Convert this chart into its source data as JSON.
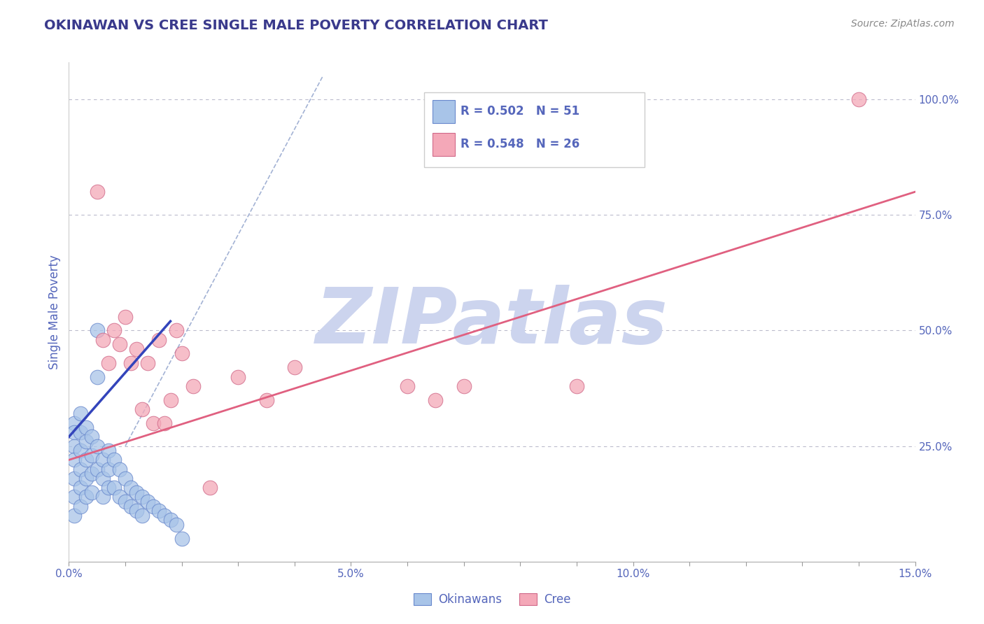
{
  "title": "OKINAWAN VS CREE SINGLE MALE POVERTY CORRELATION CHART",
  "source": "Source: ZipAtlas.com",
  "ylabel": "Single Male Poverty",
  "xlim": [
    0.0,
    0.15
  ],
  "ylim": [
    0.0,
    1.08
  ],
  "title_color": "#3a3a8c",
  "axis_color": "#5566bb",
  "watermark": "ZIPatlas",
  "watermark_color": "#ccd4ee",
  "legend_r1": "R = 0.502",
  "legend_n1": "N = 51",
  "legend_r2": "R = 0.548",
  "legend_n2": "N = 26",
  "okinawan_color": "#a8c4e8",
  "cree_color": "#f4a8b8",
  "okinawan_edge": "#6888cc",
  "cree_edge": "#d06888",
  "blue_line_color": "#3344bb",
  "pink_line_color": "#e06080",
  "ref_line_color": "#99aad0",
  "okinawan_x": [
    0.001,
    0.001,
    0.001,
    0.001,
    0.001,
    0.001,
    0.001,
    0.002,
    0.002,
    0.002,
    0.002,
    0.002,
    0.002,
    0.003,
    0.003,
    0.003,
    0.003,
    0.003,
    0.004,
    0.004,
    0.004,
    0.004,
    0.005,
    0.005,
    0.005,
    0.005,
    0.006,
    0.006,
    0.006,
    0.007,
    0.007,
    0.007,
    0.008,
    0.008,
    0.009,
    0.009,
    0.01,
    0.01,
    0.011,
    0.011,
    0.012,
    0.012,
    0.013,
    0.013,
    0.014,
    0.015,
    0.016,
    0.017,
    0.018,
    0.019,
    0.02
  ],
  "okinawan_y": [
    0.3,
    0.28,
    0.25,
    0.22,
    0.18,
    0.14,
    0.1,
    0.32,
    0.28,
    0.24,
    0.2,
    0.16,
    0.12,
    0.29,
    0.26,
    0.22,
    0.18,
    0.14,
    0.27,
    0.23,
    0.19,
    0.15,
    0.5,
    0.4,
    0.25,
    0.2,
    0.22,
    0.18,
    0.14,
    0.24,
    0.2,
    0.16,
    0.22,
    0.16,
    0.2,
    0.14,
    0.18,
    0.13,
    0.16,
    0.12,
    0.15,
    0.11,
    0.14,
    0.1,
    0.13,
    0.12,
    0.11,
    0.1,
    0.09,
    0.08,
    0.05
  ],
  "cree_x": [
    0.005,
    0.006,
    0.007,
    0.008,
    0.009,
    0.01,
    0.011,
    0.012,
    0.013,
    0.014,
    0.015,
    0.016,
    0.017,
    0.018,
    0.019,
    0.02,
    0.022,
    0.025,
    0.03,
    0.035,
    0.04,
    0.06,
    0.065,
    0.07,
    0.09,
    0.14
  ],
  "cree_y": [
    0.8,
    0.48,
    0.43,
    0.5,
    0.47,
    0.53,
    0.43,
    0.46,
    0.33,
    0.43,
    0.3,
    0.48,
    0.3,
    0.35,
    0.5,
    0.45,
    0.38,
    0.16,
    0.4,
    0.35,
    0.42,
    0.38,
    0.35,
    0.38,
    0.38,
    1.0
  ],
  "blue_line_x": [
    0.0,
    0.018
  ],
  "blue_line_y": [
    0.27,
    0.52
  ],
  "pink_line_x": [
    0.0,
    0.15
  ],
  "pink_line_y": [
    0.22,
    0.8
  ],
  "ref_line_x": [
    0.01,
    0.045
  ],
  "ref_line_y": [
    0.25,
    1.05
  ],
  "ytick_vals": [
    0.25,
    0.5,
    0.75,
    1.0
  ],
  "ytick_labels": [
    "25.0%",
    "50.0%",
    "75.0%",
    "100.0%"
  ]
}
